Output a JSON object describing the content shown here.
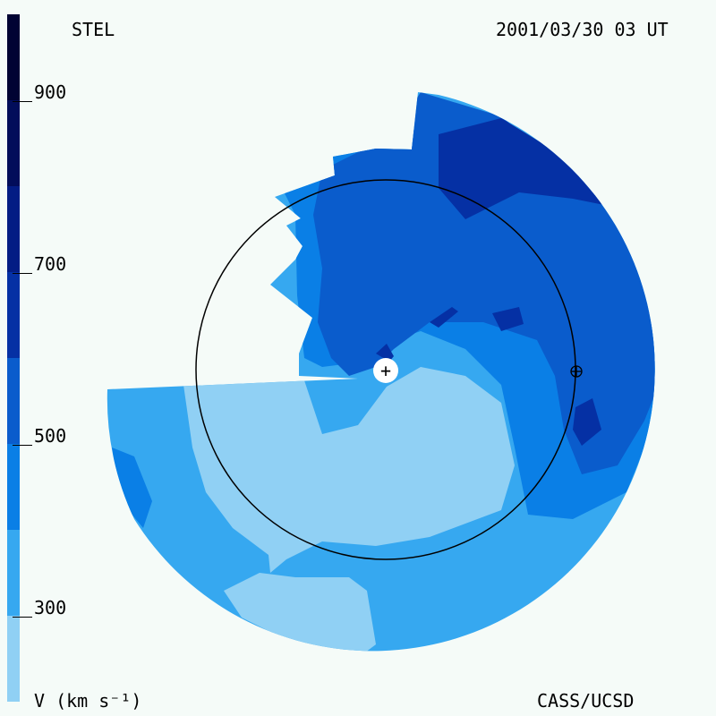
{
  "header": {
    "left_title": "STEL",
    "timestamp": "2001/03/30 03 UT"
  },
  "footer": {
    "units_label": "V (km s⁻¹)",
    "credit": "CASS/UCSD"
  },
  "colorbar": {
    "min": 200,
    "max": 1000,
    "tick_labels": [
      "900",
      "700",
      "500",
      "300"
    ],
    "tick_values": [
      900,
      700,
      500,
      300
    ],
    "levels": [
      {
        "from": 200,
        "to": 300,
        "color": "#90d0f4"
      },
      {
        "from": 300,
        "to": 400,
        "color": "#36a8f0"
      },
      {
        "from": 400,
        "to": 500,
        "color": "#0a7fe6"
      },
      {
        "from": 500,
        "to": 600,
        "color": "#0a5ccc"
      },
      {
        "from": 600,
        "to": 700,
        "color": "#0530a4"
      },
      {
        "from": 700,
        "to": 800,
        "color": "#031c84"
      },
      {
        "from": 800,
        "to": 900,
        "color": "#020d5a"
      },
      {
        "from": 900,
        "to": 1000,
        "color": "#010333"
      }
    ]
  },
  "markers": {
    "sun": "+",
    "earth": "⊕"
  }
}
